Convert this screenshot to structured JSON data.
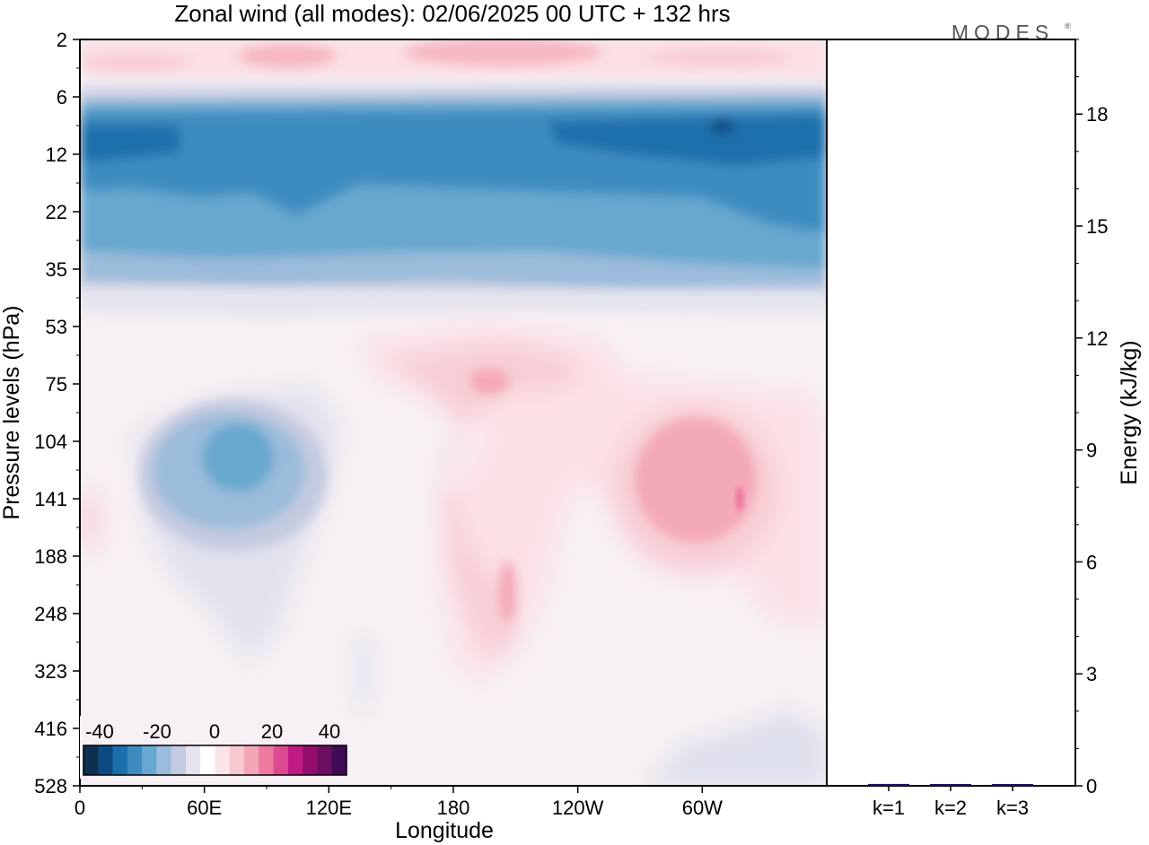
{
  "title": "Zonal wind (all modes):  02/06/2025  00 UTC  + 132 hrs",
  "logo": "MODES",
  "left_panel": {
    "xlabel": "Longitude",
    "ylabel": "Pressure levels (hPa)",
    "x_ticks": [
      "0",
      "60E",
      "120E",
      "180",
      "120W",
      "60W"
    ],
    "y_ticks": [
      "2",
      "6",
      "12",
      "22",
      "35",
      "53",
      "75",
      "104",
      "141",
      "188",
      "248",
      "323",
      "416",
      "528"
    ]
  },
  "colorbar": {
    "tick_labels": [
      "-40",
      "-20",
      "0",
      "20",
      "40"
    ],
    "colors": [
      "#0e2f4f",
      "#0d4a80",
      "#1a6fab",
      "#3d8cc0",
      "#68a7cf",
      "#9bbcda",
      "#c4cbe0",
      "#e6e5ef",
      "#ffffff",
      "#fbe4e7",
      "#f8c8d0",
      "#f4a5b5",
      "#ee7aa0",
      "#de4a92",
      "#c01b83",
      "#930d6f",
      "#6a0f62",
      "#3f0b55"
    ]
  },
  "right_panel": {
    "ylabel": "Energy (kJ/kg)",
    "y_ticks": [
      "0",
      "3",
      "6",
      "9",
      "12",
      "15",
      "18"
    ],
    "x_ticks": [
      "k=1",
      "k=2",
      "k=3"
    ]
  },
  "chart_data": [
    {
      "type": "heatmap",
      "title": "Zonal wind (all modes):  02/06/2025  00 UTC  + 132 hrs",
      "xlabel": "Longitude",
      "ylabel": "Pressure levels (hPa)",
      "x": [
        "0",
        "60E",
        "120E",
        "180",
        "120W",
        "60W"
      ],
      "y": [
        2,
        6,
        12,
        22,
        35,
        53,
        75,
        104,
        141,
        188,
        248,
        323,
        416,
        528
      ],
      "value_range": [
        -40,
        40
      ],
      "features": [
        {
          "levels_hPa": [
            6,
            35
          ],
          "sign": "negative",
          "min_value": -35,
          "note": "easterly band at all longitudes"
        },
        {
          "levels_hPa": [
            85,
            200
          ],
          "longitude": "40E-110E",
          "sign": "negative",
          "min_value": -15
        },
        {
          "levels_hPa": [
            75,
            230
          ],
          "longitude": "130W-20W",
          "sign": "positive",
          "max_value": 15
        },
        {
          "levels_hPa": [
            2,
            5
          ],
          "sign": "positive",
          "max_value": 10
        }
      ]
    },
    {
      "type": "bar",
      "ylabel": "Energy (kJ/kg)",
      "categories": [
        "k=1",
        "k=2",
        "k=3"
      ],
      "values": [
        0.05,
        0.03,
        0.02
      ],
      "ylim": [
        0,
        20
      ]
    }
  ]
}
